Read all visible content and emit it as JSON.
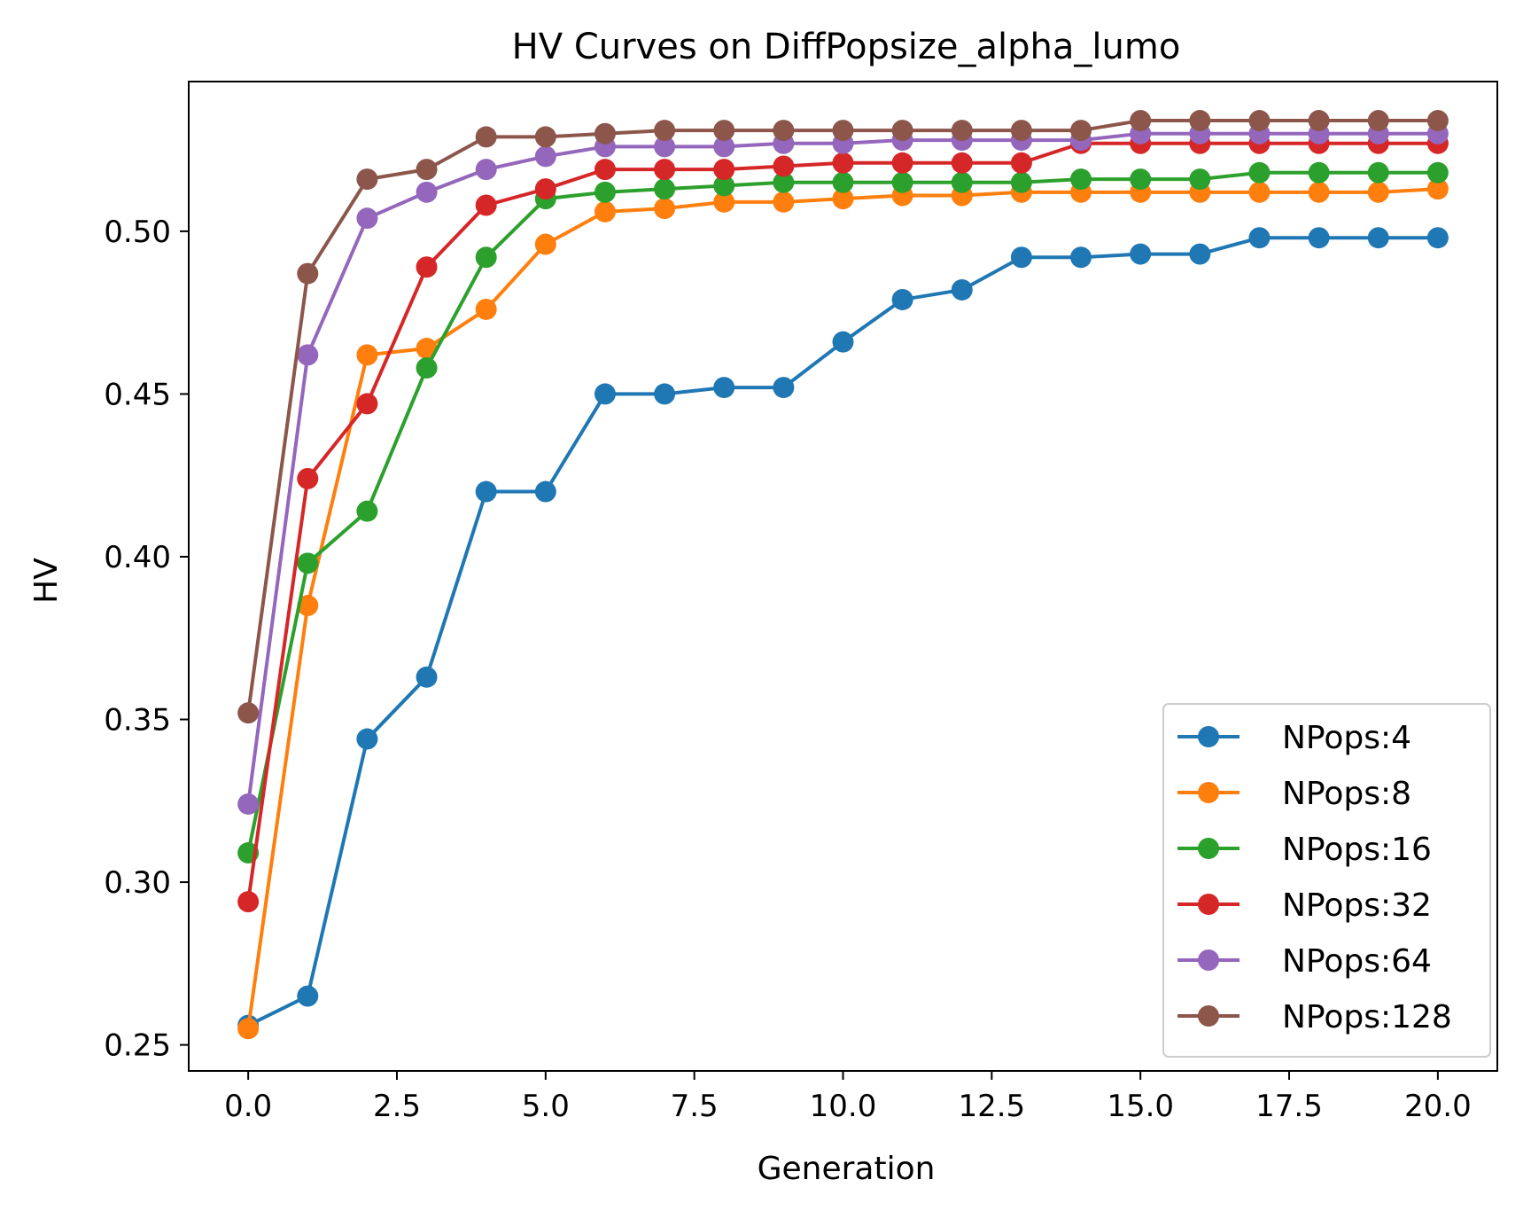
{
  "chart_data": {
    "type": "line",
    "title": "HV Curves on DiffPopsize_alpha_lumo",
    "xlabel": "Generation",
    "ylabel": "HV",
    "xlim": [
      -1,
      21
    ],
    "ylim": [
      0.242,
      0.546
    ],
    "xticks": [
      0,
      2.5,
      5,
      7.5,
      10,
      12.5,
      15,
      17.5,
      20
    ],
    "xtick_labels": [
      "0.0",
      "2.5",
      "5.0",
      "7.5",
      "10.0",
      "12.5",
      "15.0",
      "17.5",
      "20.0"
    ],
    "yticks": [
      0.25,
      0.3,
      0.35,
      0.4,
      0.45,
      0.5
    ],
    "ytick_labels": [
      "0.25",
      "0.30",
      "0.35",
      "0.40",
      "0.45",
      "0.50"
    ],
    "grid": false,
    "legend_position": "lower-right",
    "x": [
      0,
      1,
      2,
      3,
      4,
      5,
      6,
      7,
      8,
      9,
      10,
      11,
      12,
      13,
      14,
      15,
      16,
      17,
      18,
      19,
      20
    ],
    "series": [
      {
        "name": "NPops:4",
        "color": "#1f77b4",
        "values": [
          0.256,
          0.265,
          0.344,
          0.363,
          0.42,
          0.42,
          0.45,
          0.45,
          0.452,
          0.452,
          0.466,
          0.479,
          0.482,
          0.492,
          0.492,
          0.493,
          0.493,
          0.498,
          0.498,
          0.498,
          0.498
        ]
      },
      {
        "name": "NPops:8",
        "color": "#ff7f0e",
        "values": [
          0.255,
          0.385,
          0.462,
          0.464,
          0.476,
          0.496,
          0.506,
          0.507,
          0.509,
          0.509,
          0.51,
          0.511,
          0.511,
          0.512,
          0.512,
          0.512,
          0.512,
          0.512,
          0.512,
          0.512,
          0.513
        ]
      },
      {
        "name": "NPops:16",
        "color": "#2ca02c",
        "values": [
          0.309,
          0.398,
          0.414,
          0.458,
          0.492,
          0.51,
          0.512,
          0.513,
          0.514,
          0.515,
          0.515,
          0.515,
          0.515,
          0.515,
          0.516,
          0.516,
          0.516,
          0.518,
          0.518,
          0.518,
          0.518
        ]
      },
      {
        "name": "NPops:32",
        "color": "#d62728",
        "values": [
          0.294,
          0.424,
          0.447,
          0.489,
          0.508,
          0.513,
          0.519,
          0.519,
          0.519,
          0.52,
          0.521,
          0.521,
          0.521,
          0.521,
          0.527,
          0.527,
          0.527,
          0.527,
          0.527,
          0.527,
          0.527
        ]
      },
      {
        "name": "NPops:64",
        "color": "#9467bd",
        "values": [
          0.324,
          0.462,
          0.504,
          0.512,
          0.519,
          0.523,
          0.526,
          0.526,
          0.526,
          0.527,
          0.527,
          0.528,
          0.528,
          0.528,
          0.528,
          0.53,
          0.53,
          0.53,
          0.53,
          0.53,
          0.53
        ]
      },
      {
        "name": "NPops:128",
        "color": "#8c564b",
        "values": [
          0.352,
          0.487,
          0.516,
          0.519,
          0.529,
          0.529,
          0.53,
          0.531,
          0.531,
          0.531,
          0.531,
          0.531,
          0.531,
          0.531,
          0.531,
          0.534,
          0.534,
          0.534,
          0.534,
          0.534,
          0.534
        ]
      }
    ]
  }
}
